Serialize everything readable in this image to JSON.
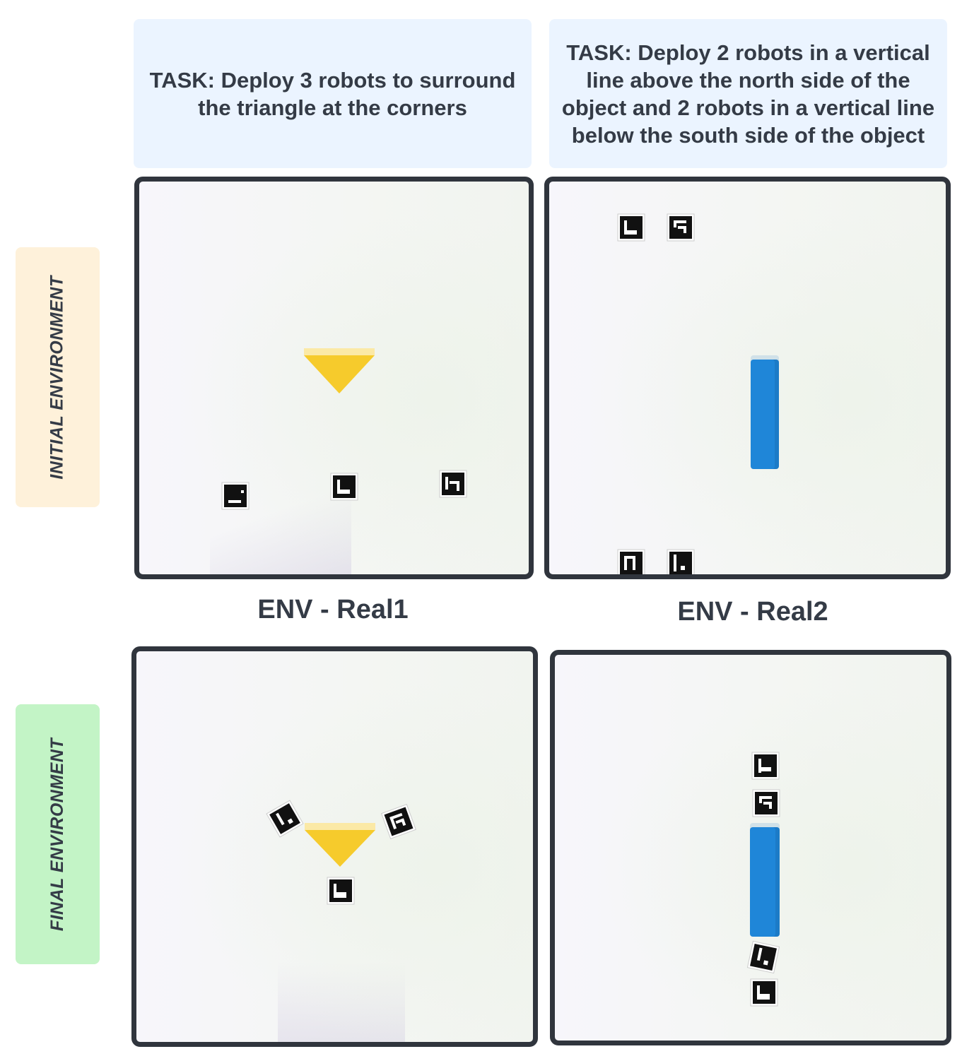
{
  "tasks": {
    "real1": "TASK: Deploy 3 robots to surround the triangle at the corners",
    "real2": "TASK: Deploy 2 robots in a vertical line above the north side of the object and 2 robots in a vertical line below the south side of the object"
  },
  "rows": {
    "initial": "INITIAL ENVIRONMENT",
    "final": "FINAL ENVIRONMENT"
  },
  "envs": {
    "real1": "ENV - Real1",
    "real2": "ENV - Real2"
  },
  "colors": {
    "task_bg": "#ebf4ff",
    "initial_bg": "#fef1da",
    "final_bg": "#c3f4c6",
    "triangle": "#f6cb2c",
    "rod": "#1f86d8",
    "panel_border": "#30353d"
  },
  "icons": {
    "robot": "aruco-marker-robot-icon",
    "object_real1": "yellow-triangle",
    "object_real2": "blue-rod"
  }
}
